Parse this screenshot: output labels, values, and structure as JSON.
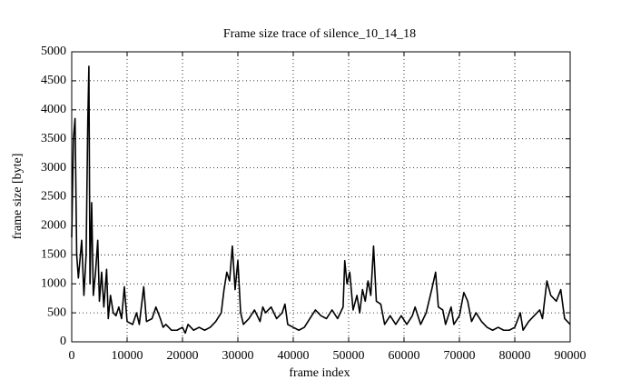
{
  "chart_data": {
    "type": "line",
    "title": "Frame size trace of silence_10_14_18",
    "x_label": "frame index",
    "y_label": "frame size [byte]",
    "xlim": [
      0,
      90000
    ],
    "xticks": [
      0,
      10000,
      20000,
      30000,
      40000,
      50000,
      60000,
      70000,
      80000,
      90000
    ],
    "ylim": [
      0,
      5000
    ],
    "yticks": [
      0,
      500,
      1000,
      1500,
      2000,
      2500,
      3000,
      3500,
      4000,
      4500,
      5000
    ],
    "grid": true,
    "color": "#000000",
    "x": [
      0,
      300,
      600,
      900,
      1200,
      1800,
      2200,
      2600,
      2900,
      3100,
      3300,
      3600,
      3900,
      4300,
      4700,
      5000,
      5400,
      5800,
      6300,
      6600,
      7000,
      7500,
      8000,
      8500,
      9000,
      9500,
      10000,
      11000,
      11700,
      12200,
      13000,
      13500,
      14500,
      15200,
      16000,
      16500,
      17000,
      18000,
      19000,
      20000,
      20500,
      21000,
      22000,
      23000,
      24000,
      25000,
      26000,
      27000,
      27500,
      28000,
      28500,
      29000,
      29500,
      30000,
      30500,
      31000,
      32000,
      33000,
      34000,
      34500,
      35000,
      36000,
      37000,
      38000,
      38500,
      39000,
      40000,
      41000,
      42000,
      43000,
      44000,
      45000,
      46000,
      47000,
      48000,
      49000,
      49300,
      49700,
      50200,
      50800,
      51500,
      52000,
      52500,
      53000,
      53500,
      54000,
      54500,
      55000,
      55800,
      56500,
      57500,
      58500,
      59500,
      60500,
      61500,
      62000,
      63000,
      64000,
      65000,
      65700,
      66200,
      67000,
      67500,
      68500,
      69000,
      70000,
      70800,
      71500,
      72200,
      73000,
      74000,
      75000,
      76000,
      77000,
      78000,
      79000,
      80000,
      81000,
      81500,
      82500,
      83500,
      84500,
      85000,
      85800,
      86500,
      87500,
      88300,
      89000,
      90000
    ],
    "values": [
      1800,
      3500,
      3850,
      1500,
      1100,
      1750,
      800,
      1500,
      3800,
      4750,
      1000,
      2400,
      800,
      1200,
      1750,
      700,
      1200,
      600,
      1250,
      400,
      800,
      500,
      450,
      600,
      400,
      950,
      350,
      300,
      500,
      300,
      950,
      350,
      400,
      600,
      400,
      250,
      300,
      200,
      200,
      250,
      150,
      300,
      200,
      250,
      200,
      250,
      350,
      500,
      900,
      1200,
      1050,
      1650,
      900,
      1400,
      500,
      300,
      400,
      550,
      350,
      600,
      500,
      600,
      400,
      500,
      650,
      300,
      250,
      200,
      250,
      400,
      550,
      450,
      400,
      550,
      400,
      600,
      1400,
      1000,
      1200,
      550,
      800,
      500,
      900,
      700,
      1050,
      800,
      1650,
      700,
      650,
      300,
      450,
      300,
      450,
      300,
      450,
      600,
      300,
      500,
      900,
      1200,
      600,
      550,
      300,
      600,
      300,
      450,
      850,
      700,
      350,
      500,
      350,
      250,
      200,
      250,
      200,
      200,
      250,
      500,
      200,
      350,
      450,
      550,
      400,
      1050,
      800,
      700,
      900,
      400,
      300
    ]
  }
}
